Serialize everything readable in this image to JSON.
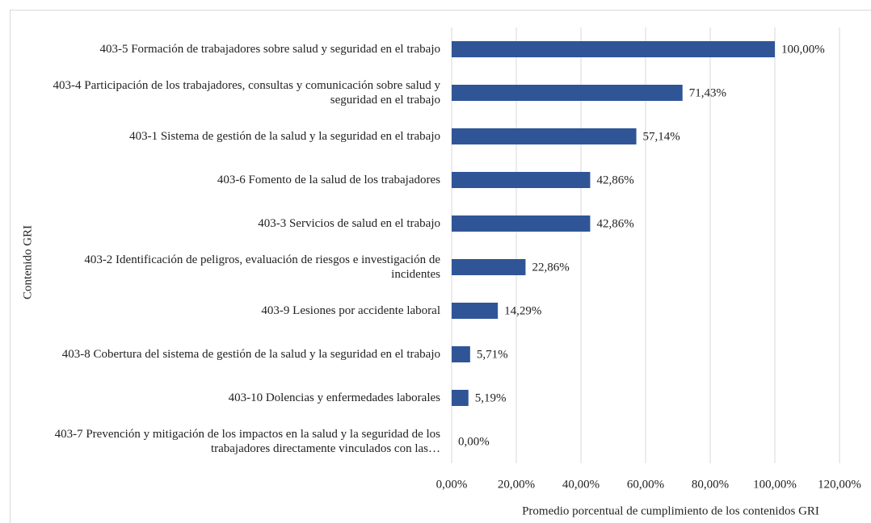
{
  "chart_data": {
    "type": "bar",
    "orientation": "horizontal",
    "categories": [
      "403-5 Formación de trabajadores sobre salud y seguridad en el trabajo",
      "403-4 Participación de los trabajadores, consultas y comunicación sobre salud y seguridad en el trabajo",
      "403-1 Sistema de gestión de la salud y la seguridad en el trabajo",
      "403-6 Fomento de la salud de los trabajadores",
      "403-3 Servicios de salud en el trabajo",
      "403-2 Identificación de peligros, evaluación de riesgos e investigación de incidentes",
      "403-9 Lesiones por accidente laboral",
      "403-8 Cobertura del sistema de gestión de la salud y la seguridad en el trabajo",
      "403-10 Dolencias y enfermedades laborales",
      "403-7 Prevención y mitigación de los impactos en la salud y la seguridad de los trabajadores directamente vinculados con las…"
    ],
    "values": [
      100,
      71.43,
      57.14,
      42.86,
      42.86,
      22.86,
      14.29,
      5.71,
      5.19,
      0
    ],
    "value_labels": [
      "100,00%",
      "71,43%",
      "57,14%",
      "42,86%",
      "42,86%",
      "22,86%",
      "14,29%",
      "5,71%",
      "5,19%",
      "0,00%"
    ],
    "color": "#2f5597",
    "xlim": [
      0,
      120
    ],
    "xticks": [
      {
        "value": 0,
        "label": "0,00%"
      },
      {
        "value": 20,
        "label": "20,00%"
      },
      {
        "value": 40,
        "label": "40,00%"
      },
      {
        "value": 60,
        "label": "60,00%"
      },
      {
        "value": 80,
        "label": "80,00%"
      },
      {
        "value": 100,
        "label": "100,00%"
      },
      {
        "value": 120,
        "label": "120,00%"
      }
    ],
    "grid": true,
    "x_label": "Promedio porcentual de cumplimiento de los contenidos GRI",
    "y_label": "Contenido GRI"
  }
}
